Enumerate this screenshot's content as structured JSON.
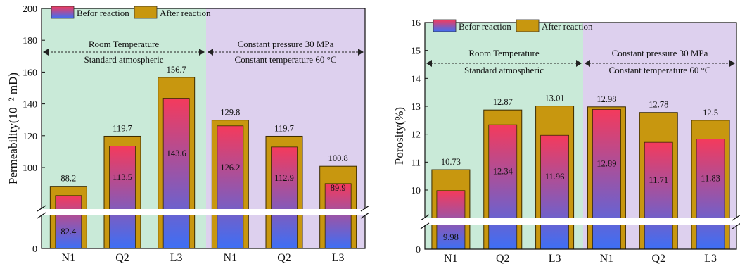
{
  "colors": {
    "left_region": "#c9ead8",
    "right_region": "#ddd0ee",
    "after_fill": "#c8970f",
    "after_stroke": "#3a2a00",
    "before_top": "#f43a5c",
    "before_bottom": "#3d6ff5",
    "break_band": "#ffffff"
  },
  "chart_data": [
    {
      "type": "bar",
      "ylabel": "Permeability(10⁻² mD)",
      "ylim": [
        0,
        200
      ],
      "axis_break": [
        0,
        70
      ],
      "yticks": [
        {
          "value": 0,
          "label": "0"
        },
        {
          "value": 100,
          "label": "100"
        },
        {
          "value": 120,
          "label": "120"
        },
        {
          "value": 140,
          "label": "140"
        },
        {
          "value": 160,
          "label": "160"
        },
        {
          "value": 180,
          "label": "180"
        },
        {
          "value": 200,
          "label": "200"
        }
      ],
      "categories": [
        "N1",
        "Q2",
        "L3",
        "N1",
        "Q2",
        "L3"
      ],
      "series": [
        {
          "name": "Befor reaction",
          "values": [
            82.4,
            113.5,
            143.6,
            126.2,
            112.9,
            89.9
          ],
          "labels": [
            "82.4",
            "113.5",
            "143.6",
            "126.2",
            "112.9",
            "89.9"
          ]
        },
        {
          "name": "After reaction",
          "values": [
            88.2,
            119.7,
            156.7,
            129.8,
            119.7,
            100.8
          ],
          "labels": [
            "88.2",
            "119.7",
            "156.7",
            "129.8",
            "119.7",
            "100.8"
          ]
        }
      ],
      "legend": "top-left",
      "left_notes": [
        "Room Temperature",
        "Standard atmospheric"
      ],
      "right_notes": [
        "Constant pressure 30 MPa",
        "Constant temperature 60 °C"
      ]
    },
    {
      "type": "bar",
      "ylabel": "Porosity(%)",
      "ylim": [
        0,
        16
      ],
      "axis_break": [
        0,
        9.2
      ],
      "yticks": [
        {
          "value": 0,
          "label": "0"
        },
        {
          "value": 10,
          "label": "10"
        },
        {
          "value": 11,
          "label": "11"
        },
        {
          "value": 12,
          "label": "12"
        },
        {
          "value": 13,
          "label": "13"
        },
        {
          "value": 14,
          "label": "14"
        },
        {
          "value": 15,
          "label": "15"
        },
        {
          "value": 16,
          "label": "16"
        }
      ],
      "categories": [
        "N1",
        "Q2",
        "L3",
        "N1",
        "Q2",
        "L3"
      ],
      "series": [
        {
          "name": "Befor reaction",
          "values": [
            9.98,
            12.34,
            11.96,
            12.89,
            11.71,
            11.83
          ],
          "labels": [
            "9.98",
            "12.34",
            "11.96",
            "12.89",
            "11.71",
            "11.83"
          ]
        },
        {
          "name": "After reaction",
          "values": [
            10.73,
            12.87,
            13.01,
            12.98,
            12.78,
            12.5
          ],
          "labels": [
            "10.73",
            "12.87",
            "13.01",
            "12.98",
            "12.78",
            "12.5"
          ]
        }
      ],
      "legend": "top-left",
      "left_notes": [
        "Room Temperature",
        "Standard atmospheric"
      ],
      "right_notes": [
        "Constant pressure 30 MPa",
        "Constant temperature 60 °C"
      ]
    }
  ]
}
